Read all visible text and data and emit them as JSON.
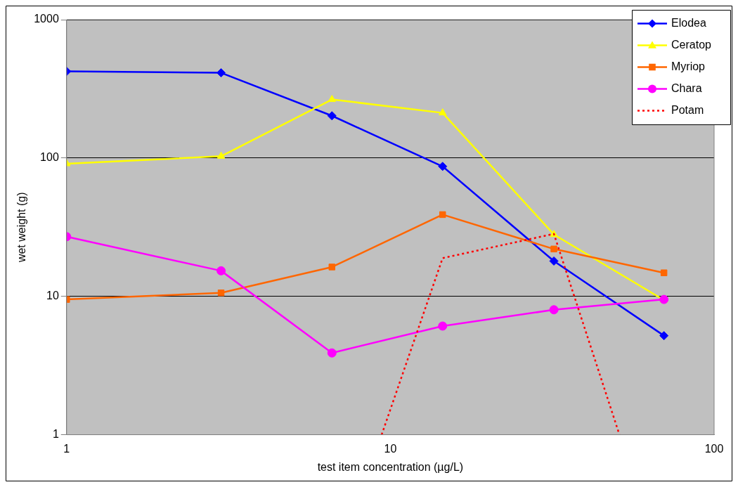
{
  "chart_data": {
    "type": "line",
    "xlabel": "test item concentration (µg/L)",
    "ylabel": "wet weight (g)",
    "x": [
      1,
      3,
      6.6,
      14.5,
      32,
      70
    ],
    "series": [
      {
        "name": "Elodea",
        "color": "#0000ff",
        "marker": "diamond",
        "values": [
          423,
          413,
          202,
          87,
          18,
          5.2
        ]
      },
      {
        "name": "Ceratop",
        "color": "#ffff00",
        "marker": "triangle",
        "values": [
          91,
          103,
          265,
          212,
          28,
          9.4
        ]
      },
      {
        "name": "Myriop",
        "color": "#ff6600",
        "marker": "square",
        "values": [
          9.5,
          10.6,
          16.3,
          39,
          22,
          14.8
        ]
      },
      {
        "name": "Chara",
        "color": "#ff00ff",
        "marker": "circle",
        "values": [
          27,
          15.3,
          3.9,
          6.1,
          8.0,
          9.5
        ]
      },
      {
        "name": "Potam",
        "color": "#ff0000",
        "marker": "none",
        "line_style": "dotted",
        "x": [
          9.4,
          14.5,
          32,
          51
        ],
        "values": [
          1,
          18.9,
          28.3,
          1
        ]
      }
    ],
    "log": "xy",
    "xlim": [
      1,
      100
    ],
    "xticks": [
      1,
      10,
      100
    ],
    "ylim": [
      1,
      1000
    ],
    "yticks": [
      1,
      10,
      100,
      1000
    ],
    "grid": "y",
    "legend": "top right"
  }
}
